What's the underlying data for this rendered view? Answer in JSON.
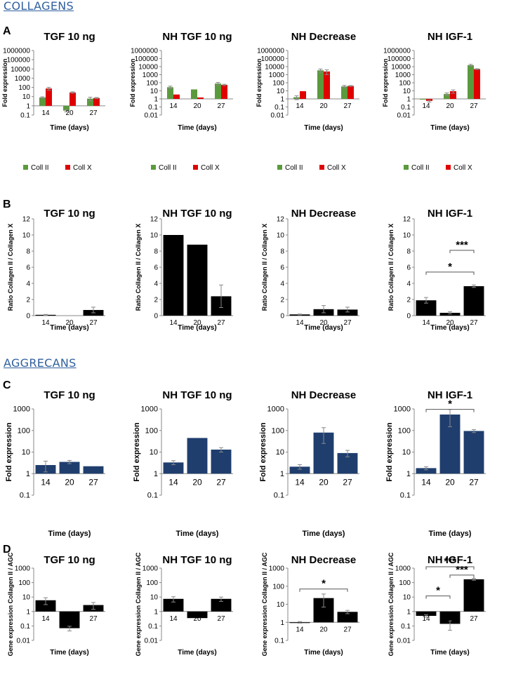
{
  "sections": {
    "collagens": "COLLAGENS",
    "aggrecans": "AGGRECANS"
  },
  "row_letters": [
    "A",
    "B",
    "C",
    "D"
  ],
  "colors": {
    "coll2": "#5b9a3c",
    "collx": "#e00000",
    "agc": "#1f3e6e",
    "ratio": "#000000"
  },
  "chart_data": [
    {
      "id": "A1",
      "type": "bar",
      "scale": "log",
      "title": "TGF 10 ng",
      "ylabel": "Fold expression",
      "xlabel": "Time (days)",
      "categories": [
        "14",
        "20",
        "27"
      ],
      "ylim": [
        0.1,
        1000000
      ],
      "yticks": [
        "0.1",
        "1",
        "10",
        "100",
        "1000",
        "10000",
        "100000",
        "1000000"
      ],
      "series": [
        {
          "name": "Coll II",
          "values": [
            8,
            0.3,
            6
          ],
          "errors": [
            1.5,
            0.08,
            2.5
          ]
        },
        {
          "name": "Coll X",
          "values": [
            75,
            28,
            7
          ],
          "errors": [
            25,
            5,
            1
          ]
        }
      ],
      "legend": [
        "Coll II",
        "Coll X"
      ]
    },
    {
      "id": "A2",
      "type": "bar",
      "scale": "log",
      "title": "NH TGF 10 ng",
      "ylabel": "Fold expression",
      "xlabel": "Time (days)",
      "categories": [
        "14",
        "20",
        "27"
      ],
      "ylim": [
        0.01,
        1000000
      ],
      "yticks": [
        "0.01",
        "0.1",
        "1",
        "10",
        "100",
        "1000",
        "10000",
        "100000",
        "1000000"
      ],
      "series": [
        {
          "name": "Coll II",
          "values": [
            28,
            15,
            80
          ],
          "errors": [
            10,
            0,
            30
          ]
        },
        {
          "name": "Coll X",
          "values": [
            3.5,
            1.5,
            55
          ],
          "errors": [
            0,
            0,
            10
          ]
        }
      ],
      "legend": [
        "Coll II",
        "Coll X"
      ]
    },
    {
      "id": "A3",
      "type": "bar",
      "scale": "log",
      "title": "NH Decrease",
      "ylabel": "Fold expression",
      "xlabel": "Time (days)",
      "categories": [
        "14",
        "20",
        "27"
      ],
      "ylim": [
        0.01,
        1000000
      ],
      "yticks": [
        "0.01",
        "0.1",
        "1",
        "10",
        "100",
        "1000",
        "10000",
        "100000",
        "1000000"
      ],
      "series": [
        {
          "name": "Coll II",
          "values": [
            1.6,
            3500,
            35
          ],
          "errors": [
            0.8,
            1500,
            12
          ]
        },
        {
          "name": "Coll X",
          "values": [
            9,
            2500,
            40
          ],
          "errors": [
            0,
            1500,
            5
          ]
        }
      ],
      "legend": [
        "Coll II",
        "Coll X"
      ]
    },
    {
      "id": "A4",
      "type": "bar",
      "scale": "log",
      "title": "NH IGF-1",
      "ylabel": "Fold expression",
      "xlabel": "Time (days)",
      "categories": [
        "14",
        "20",
        "27"
      ],
      "ylim": [
        0.01,
        1000000
      ],
      "yticks": [
        "0.01",
        "0.1",
        "1",
        "10",
        "100",
        "1000",
        "10000",
        "100000",
        "1000000"
      ],
      "series": [
        {
          "name": "Coll II",
          "values": [
            1,
            4,
            15000
          ],
          "errors": [
            0,
            1.5,
            4000
          ]
        },
        {
          "name": "Coll X",
          "values": [
            0.55,
            9,
            5000
          ],
          "errors": [
            0.15,
            4,
            500
          ]
        }
      ],
      "legend": [
        "Coll II",
        "Coll X"
      ]
    },
    {
      "id": "B1",
      "type": "bar",
      "scale": "linear",
      "title": "TGF 10 ng",
      "ylabel": "Ratio Collagen II / Collagen X",
      "xlabel": "Time (days)",
      "categories": [
        "14",
        "20",
        "27"
      ],
      "ylim": [
        0,
        12
      ],
      "yticks": [
        "0",
        "2",
        "4",
        "6",
        "8",
        "10",
        "12"
      ],
      "series": [
        {
          "name": "Ratio",
          "values": [
            0.1,
            0,
            0.7
          ],
          "errors": [
            0.05,
            0,
            0.35
          ]
        }
      ]
    },
    {
      "id": "B2",
      "type": "bar",
      "scale": "linear",
      "title": "NH TGF 10 ng",
      "ylabel": "Ratio Collagen II / Collagen X",
      "xlabel": "Time (days)",
      "categories": [
        "14",
        "20",
        "27"
      ],
      "ylim": [
        0,
        12
      ],
      "yticks": [
        "0",
        "2",
        "4",
        "6",
        "8",
        "10",
        "12"
      ],
      "series": [
        {
          "name": "Ratio",
          "values": [
            10,
            8.8,
            2.4
          ],
          "errors": [
            0,
            0,
            1.4
          ]
        }
      ]
    },
    {
      "id": "B3",
      "type": "bar",
      "scale": "linear",
      "title": "NH Decrease",
      "ylabel": "Ratio Collagen II / Collagen X",
      "xlabel": "Time (days)",
      "categories": [
        "14",
        "20",
        "27"
      ],
      "ylim": [
        0,
        12
      ],
      "yticks": [
        "0",
        "2",
        "4",
        "6",
        "8",
        "10",
        "12"
      ],
      "series": [
        {
          "name": "Ratio",
          "values": [
            0.15,
            0.8,
            0.75
          ],
          "errors": [
            0.05,
            0.45,
            0.3
          ]
        }
      ]
    },
    {
      "id": "B4",
      "type": "bar",
      "scale": "linear",
      "title": "NH IGF-1",
      "ylabel": "Ratio Collagen II / Collagen X",
      "xlabel": "Time (days)",
      "categories": [
        "14",
        "20",
        "27"
      ],
      "ylim": [
        0,
        12
      ],
      "yticks": [
        "0",
        "2",
        "4",
        "6",
        "8",
        "10",
        "12"
      ],
      "series": [
        {
          "name": "Ratio",
          "values": [
            1.9,
            0.35,
            3.65
          ],
          "errors": [
            0.35,
            0.15,
            0.15
          ]
        }
      ],
      "significance": [
        {
          "from": 0,
          "to": 2,
          "level": 5.4,
          "label": "*"
        },
        {
          "from": 1,
          "to": 2,
          "level": 8.1,
          "label": "***"
        }
      ]
    },
    {
      "id": "C1",
      "type": "bar",
      "scale": "log",
      "title": "TGF 10 ng",
      "ylabel": "Fold expression",
      "xlabel": "Time (days)",
      "categories": [
        "14",
        "20",
        "27"
      ],
      "ylim": [
        0.1,
        1000
      ],
      "yticks": [
        "0.1",
        "1",
        "10",
        "100",
        "1000"
      ],
      "series": [
        {
          "name": "Aggrecan",
          "values": [
            2.5,
            3.5,
            2.2
          ],
          "errors": [
            1.3,
            0.6,
            0
          ]
        }
      ]
    },
    {
      "id": "C2",
      "type": "bar",
      "scale": "log",
      "title": "NH TGF 10 ng",
      "ylabel": "Fold expression",
      "xlabel": "Time (days)",
      "categories": [
        "14",
        "20",
        "27"
      ],
      "ylim": [
        0.1,
        1000
      ],
      "yticks": [
        "0.1",
        "1",
        "10",
        "100",
        "1000"
      ],
      "series": [
        {
          "name": "Aggrecan",
          "values": [
            3.3,
            45,
            13
          ],
          "errors": [
            0.7,
            0,
            3
          ]
        }
      ]
    },
    {
      "id": "C3",
      "type": "bar",
      "scale": "log",
      "title": "NH Decrease",
      "ylabel": "Fold expression",
      "xlabel": "Time (days)",
      "categories": [
        "14",
        "20",
        "27"
      ],
      "ylim": [
        0.1,
        1000
      ],
      "yticks": [
        "0.1",
        "1",
        "10",
        "100",
        "1000"
      ],
      "series": [
        {
          "name": "Aggrecan",
          "values": [
            2.1,
            80,
            9
          ],
          "errors": [
            0.5,
            55,
            3
          ]
        }
      ]
    },
    {
      "id": "C4",
      "type": "bar",
      "scale": "log",
      "title": "NH IGF-1",
      "ylabel": "Fold expression",
      "xlabel": "Time (days)",
      "categories": [
        "14",
        "20",
        "27"
      ],
      "ylim": [
        0.1,
        1000
      ],
      "yticks": [
        "0.1",
        "1",
        "10",
        "100",
        "1000"
      ],
      "series": [
        {
          "name": "Aggrecan",
          "values": [
            1.8,
            550,
            95
          ],
          "errors": [
            0.3,
            400,
            15
          ]
        }
      ],
      "significance": [
        {
          "from": 0,
          "to": 2,
          "level": 950,
          "label": "*"
        }
      ]
    },
    {
      "id": "D1",
      "type": "bar",
      "scale": "log",
      "title": "TGF 10 ng",
      "ylabel": "Gene expression Collagen II / AGC",
      "xlabel": "Time (days)",
      "categories": [
        "14",
        "20",
        "27"
      ],
      "ylim": [
        0.01,
        1000
      ],
      "yticks": [
        "0.01",
        "0.1",
        "1",
        "10",
        "100",
        "1000"
      ],
      "series": [
        {
          "name": "Ratio",
          "values": [
            6,
            0.07,
            2.8
          ],
          "errors": [
            3,
            0.025,
            1.4
          ]
        }
      ]
    },
    {
      "id": "D2",
      "type": "bar",
      "scale": "log",
      "title": "NH TGF 10 ng",
      "ylabel": "Gene expression Collagen II / AGC",
      "xlabel": "Time (days)",
      "categories": [
        "14",
        "20",
        "27"
      ],
      "ylim": [
        0.01,
        1000
      ],
      "yticks": [
        "0.01",
        "0.1",
        "1",
        "10",
        "100",
        "1000"
      ],
      "series": [
        {
          "name": "Ratio",
          "values": [
            7.5,
            0.35,
            7.5
          ],
          "errors": [
            3,
            0,
            2.5
          ]
        }
      ]
    },
    {
      "id": "D3",
      "type": "bar",
      "scale": "log",
      "title": "NH Decrease",
      "ylabel": "Gene expression Collagen II / AGC",
      "xlabel": "Time (days)",
      "categories": [
        "14",
        "20",
        "27"
      ],
      "ylim": [
        0.1,
        1000
      ],
      "yticks": [
        "0.1",
        "1",
        "10",
        "100",
        "1000"
      ],
      "series": [
        {
          "name": "Ratio",
          "values": [
            1,
            22,
            3.8
          ],
          "errors": [
            0.1,
            15,
            0.8
          ]
        }
      ],
      "significance": [
        {
          "from": 0,
          "to": 2,
          "level": 70,
          "label": "*"
        }
      ]
    },
    {
      "id": "D4",
      "type": "bar",
      "scale": "log",
      "title": "NH IGF-1",
      "ylabel": "Gene expression Collagen II / AGC",
      "xlabel": "Time (days)",
      "categories": [
        "14",
        "20",
        "27"
      ],
      "ylim": [
        0.01,
        1000
      ],
      "yticks": [
        "0.01",
        "0.1",
        "1",
        "10",
        "100",
        "1000"
      ],
      "series": [
        {
          "name": "Ratio",
          "values": [
            0.5,
            0.14,
            170
          ],
          "errors": [
            0.1,
            0.09,
            25
          ]
        }
      ],
      "significance": [
        {
          "from": 0,
          "to": 1,
          "level": 12,
          "label": "*"
        },
        {
          "from": 1,
          "to": 2,
          "level": 330,
          "label": "***"
        },
        {
          "from": 0,
          "to": 2,
          "level": 1250,
          "label": "***"
        }
      ]
    }
  ]
}
